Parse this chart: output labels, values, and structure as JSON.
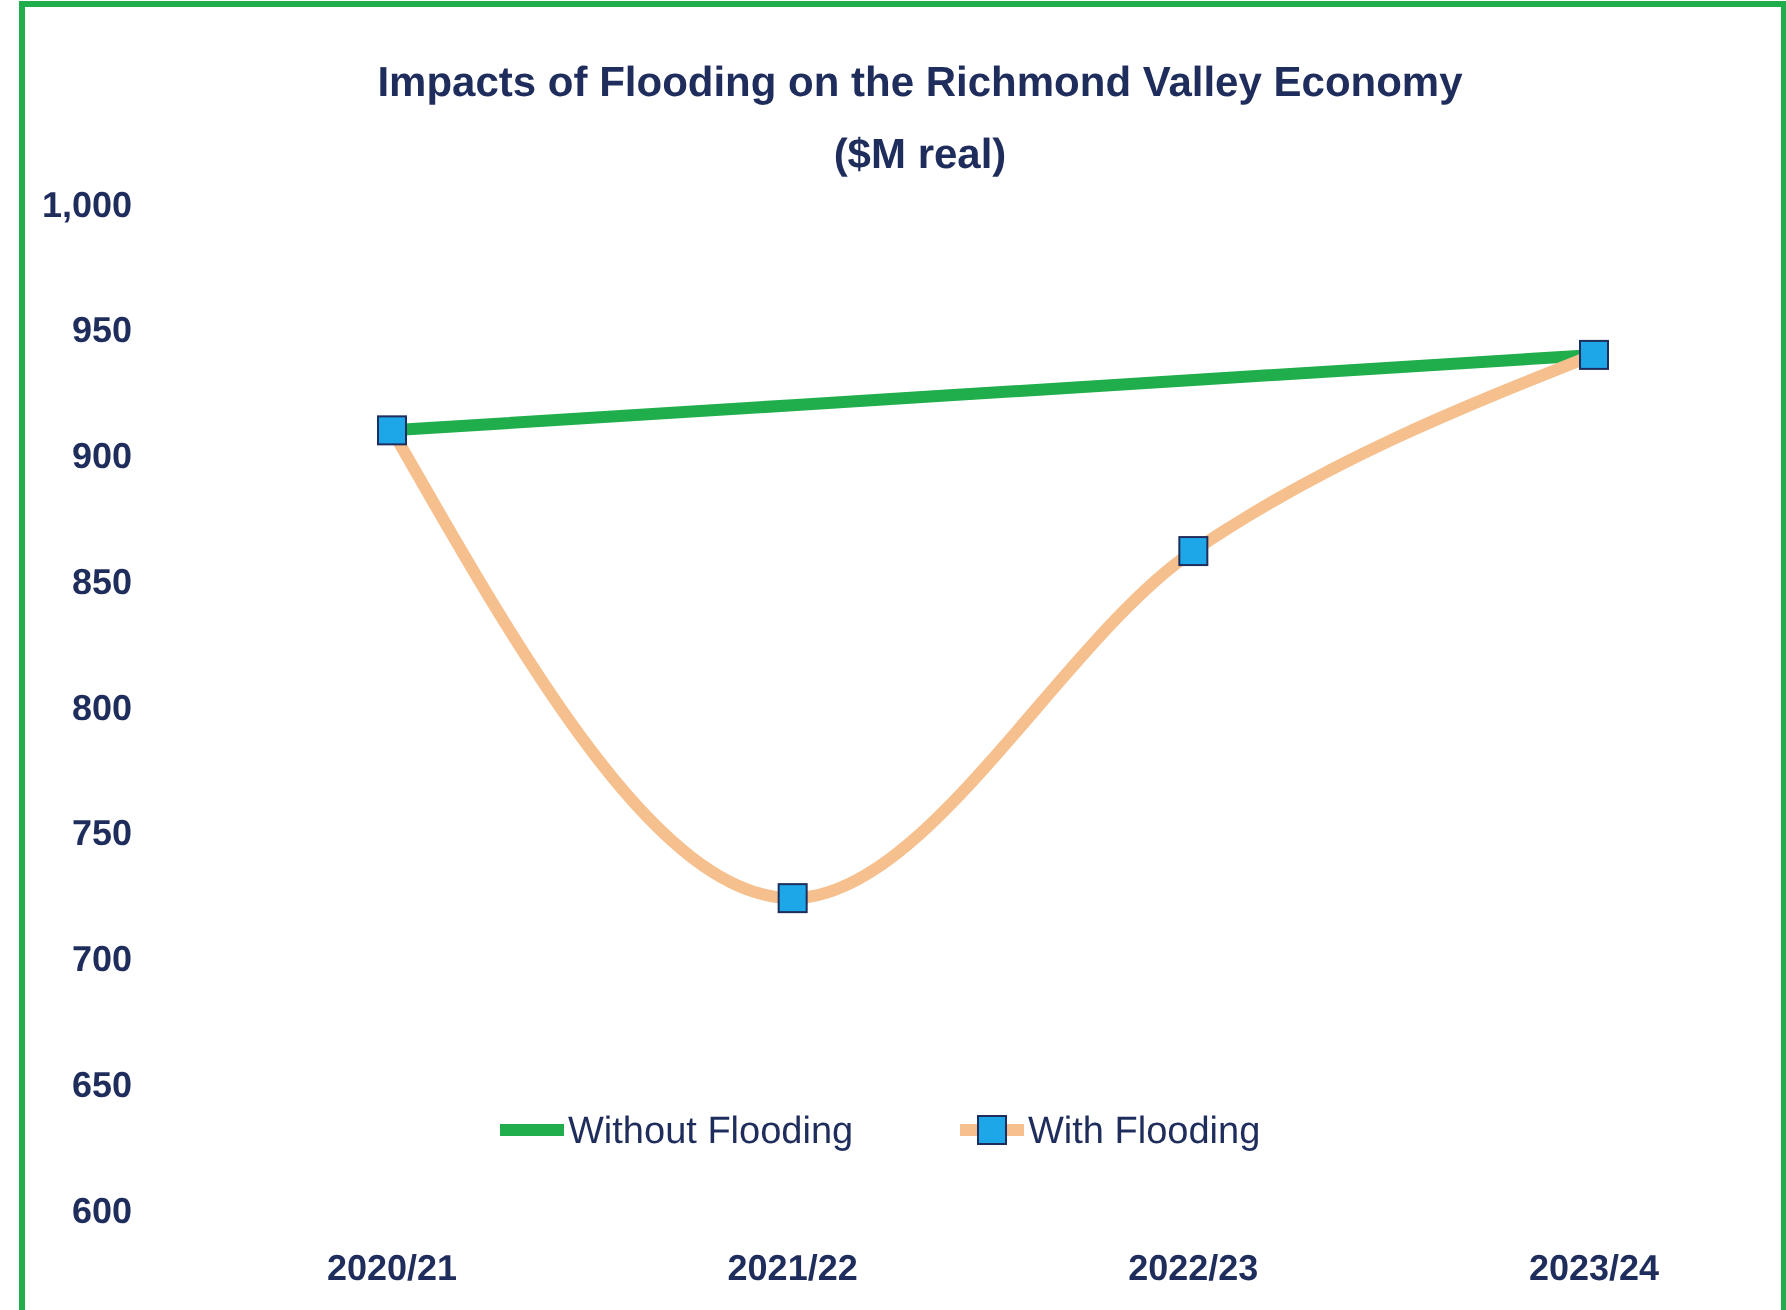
{
  "chart_data": {
    "type": "line",
    "title": "Impacts of Flooding on the Richmond Valley Economy",
    "subtitle": "($M real)",
    "categories": [
      "2020/21",
      "2021/22",
      "2022/23",
      "2023/24"
    ],
    "series": [
      {
        "name": "Without Flooding",
        "color": "#1fae4b",
        "values": [
          910,
          920,
          930,
          940
        ]
      },
      {
        "name": "With Flooding",
        "color": "#f5c08e",
        "values": [
          910,
          724,
          862,
          940
        ],
        "marker": "square"
      }
    ],
    "ylim": [
      600,
      1000
    ],
    "yticks": [
      600,
      650,
      700,
      750,
      800,
      850,
      900,
      950,
      {
        "value": 1000,
        "label": "1,000"
      }
    ],
    "grid": false,
    "legend": "bottom",
    "line_style": "solid"
  }
}
